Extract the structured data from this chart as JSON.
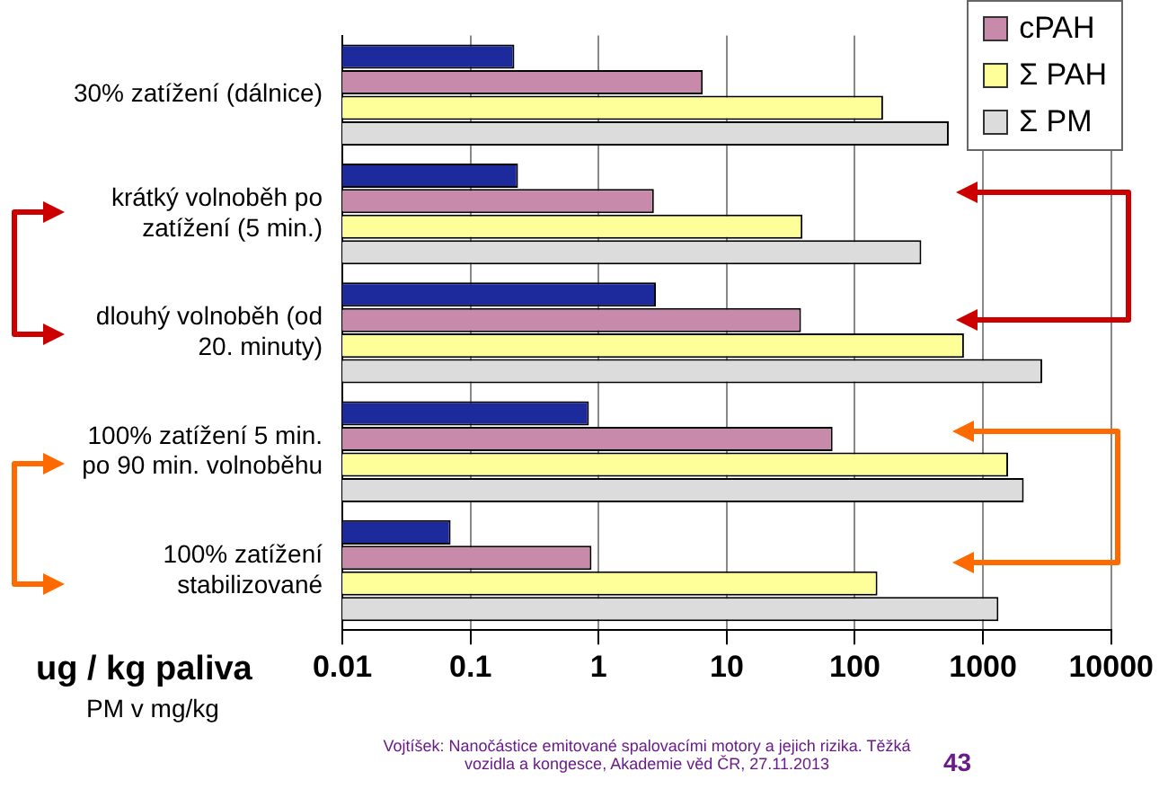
{
  "chart_data": {
    "type": "bar",
    "orientation": "horizontal",
    "log": "x",
    "xlabel": "ug / kg paliva",
    "categories": [
      "30% zatížení (dálnice)",
      "krátký volnoběh po zatížení (5 min.)",
      "dlouhý volnoběh (od 20. minuty)",
      "100% zatížení 5 min. po 90 min. volnoběhu",
      "100% zatížení stabilizované"
    ],
    "series": [
      {
        "color": "#1c2a9c",
        "values": [
          0.22,
          0.235,
          2.8,
          0.84,
          0.07
        ]
      },
      {
        "name": "cPAH",
        "color": "#c88aaa",
        "values": [
          6.5,
          2.7,
          38,
          67,
          0.88
        ]
      },
      {
        "name": "Σ PAH",
        "color": "#ffff99",
        "values": [
          166,
          39,
          710,
          1570,
          150
        ]
      },
      {
        "name": "Σ PM",
        "color": "#dcdcdc",
        "values": [
          540,
          330,
          2900,
          2080,
          1320
        ]
      }
    ],
    "xlim": [
      0.01,
      10000
    ],
    "xticks": [
      0.01,
      0.1,
      1,
      10,
      100,
      1000,
      10000
    ],
    "grid": "x",
    "legend": "top right",
    "annotations": [
      "PM v mg/kg",
      "Vojtíšek: Nanočástice emitované spalovacími motory a jejich rizika. Těžká vozidla a kongesce, Akademie věd ČR, 27.11.2013",
      "43"
    ]
  }
}
